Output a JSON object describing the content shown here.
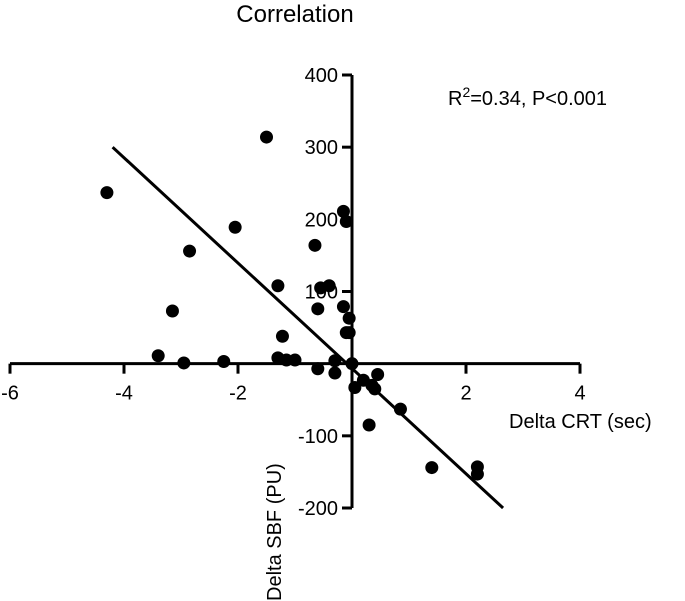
{
  "chart_data": {
    "type": "scatter",
    "title": "Correlation",
    "xlabel": "Delta CRT (sec)",
    "ylabel": "Delta SBF (PU)",
    "xlim": [
      -6,
      4
    ],
    "ylim": [
      -200,
      400
    ],
    "xticks": [
      -6,
      -4,
      -2,
      2,
      4
    ],
    "xtick_labels": [
      "-6",
      "-4",
      "-2",
      "2",
      "4"
    ],
    "yticks": [
      -200,
      -100,
      100,
      200,
      300,
      400
    ],
    "ytick_labels": [
      "-200",
      "-100",
      "100",
      "200",
      "300",
      "400"
    ],
    "annotation_prefix": "R",
    "annotation_sup": "2",
    "annotation_rest": "=0.34, P<0.001",
    "regression_line": {
      "x": [
        -4.2,
        2.65
      ],
      "y": [
        300,
        -200
      ]
    },
    "points": [
      {
        "x": -4.3,
        "y": 237
      },
      {
        "x": -1.5,
        "y": 314
      },
      {
        "x": -2.05,
        "y": 189
      },
      {
        "x": -2.85,
        "y": 156
      },
      {
        "x": -3.15,
        "y": 73
      },
      {
        "x": -3.4,
        "y": 11
      },
      {
        "x": -2.95,
        "y": 1
      },
      {
        "x": -2.25,
        "y": 3
      },
      {
        "x": -1.3,
        "y": 108
      },
      {
        "x": -1.22,
        "y": 38
      },
      {
        "x": -1.3,
        "y": 8
      },
      {
        "x": -1.15,
        "y": 5
      },
      {
        "x": -1.0,
        "y": 5
      },
      {
        "x": -0.65,
        "y": 164
      },
      {
        "x": -0.55,
        "y": 105
      },
      {
        "x": -0.6,
        "y": 76
      },
      {
        "x": -0.4,
        "y": 108
      },
      {
        "x": -0.15,
        "y": 211
      },
      {
        "x": -0.1,
        "y": 197
      },
      {
        "x": -0.15,
        "y": 79
      },
      {
        "x": -0.05,
        "y": 63
      },
      {
        "x": -0.1,
        "y": 43
      },
      {
        "x": -0.05,
        "y": 43
      },
      {
        "x": -0.6,
        "y": -7
      },
      {
        "x": -0.3,
        "y": 4
      },
      {
        "x": -0.3,
        "y": -13
      },
      {
        "x": 0.0,
        "y": 0
      },
      {
        "x": 0.05,
        "y": -33
      },
      {
        "x": 0.2,
        "y": -23
      },
      {
        "x": 0.35,
        "y": -30
      },
      {
        "x": 0.4,
        "y": -35
      },
      {
        "x": 0.45,
        "y": -15
      },
      {
        "x": 0.3,
        "y": -85
      },
      {
        "x": 0.85,
        "y": -63
      },
      {
        "x": 1.4,
        "y": -144
      },
      {
        "x": 2.2,
        "y": -153
      },
      {
        "x": 2.2,
        "y": -143
      }
    ]
  }
}
